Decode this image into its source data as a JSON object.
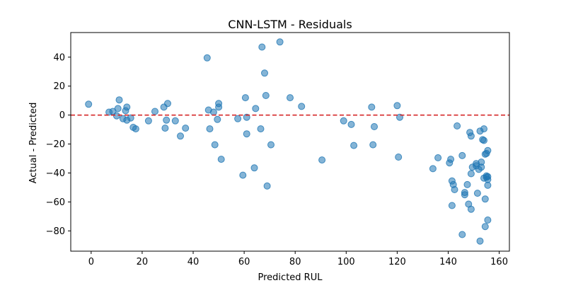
{
  "chart_data": {
    "type": "scatter",
    "title": "CNN-LSTM - Residuals",
    "xlabel": "Predicted RUL",
    "ylabel": "Actual - Predicted",
    "xlim": [
      -8,
      164
    ],
    "ylim": [
      -94,
      57
    ],
    "xticks": [
      0,
      20,
      40,
      60,
      80,
      100,
      120,
      140,
      160
    ],
    "yticks": [
      -80,
      -60,
      -40,
      -20,
      0,
      20,
      40
    ],
    "point_color": "#1f77b4",
    "point_opacity": 0.55,
    "reference_line": {
      "y": 0,
      "color": "#d62728",
      "style": "dashed"
    },
    "grid": false,
    "legend": "none",
    "points": [
      [
        -1,
        7.5
      ],
      [
        7,
        2
      ],
      [
        8.5,
        2.5
      ],
      [
        10,
        -0.5
      ],
      [
        10.5,
        4.5
      ],
      [
        11,
        10.5
      ],
      [
        12.5,
        -2.5
      ],
      [
        13.5,
        3
      ],
      [
        14,
        -3.5
      ],
      [
        14,
        5.5
      ],
      [
        15.5,
        -2
      ],
      [
        16.5,
        -8.5
      ],
      [
        17.5,
        -9.5
      ],
      [
        22.5,
        -4
      ],
      [
        25,
        2.5
      ],
      [
        28.5,
        5.5
      ],
      [
        29,
        -9
      ],
      [
        29.5,
        -3.5
      ],
      [
        30,
        8
      ],
      [
        33,
        -4
      ],
      [
        35,
        -14.5
      ],
      [
        37,
        -9
      ],
      [
        45.5,
        39.5
      ],
      [
        46,
        3.5
      ],
      [
        46.5,
        -9.5
      ],
      [
        48,
        2
      ],
      [
        48.5,
        -20.5
      ],
      [
        49.5,
        -3
      ],
      [
        50,
        5.5
      ],
      [
        50,
        8
      ],
      [
        51,
        -30.5
      ],
      [
        57.5,
        -2.5
      ],
      [
        59.5,
        -41.5
      ],
      [
        60.5,
        12
      ],
      [
        61,
        -13
      ],
      [
        61,
        -1.5
      ],
      [
        64,
        -36.5
      ],
      [
        64.5,
        4.5
      ],
      [
        66.5,
        -9.5
      ],
      [
        67,
        47
      ],
      [
        68,
        29
      ],
      [
        68.5,
        13.5
      ],
      [
        69,
        -49
      ],
      [
        70.5,
        -20.5
      ],
      [
        74,
        50.5
      ],
      [
        78,
        12
      ],
      [
        82.5,
        6
      ],
      [
        90.5,
        -31
      ],
      [
        99,
        -4
      ],
      [
        102,
        -6.5
      ],
      [
        103,
        -21
      ],
      [
        110,
        5.5
      ],
      [
        110.5,
        -20.5
      ],
      [
        111,
        -8
      ],
      [
        120,
        6.5
      ],
      [
        120.5,
        -29
      ],
      [
        121,
        -1.5
      ],
      [
        134,
        -37
      ],
      [
        136,
        -29.5
      ],
      [
        140.5,
        -33
      ],
      [
        141,
        -30.5
      ],
      [
        141.5,
        -45.5
      ],
      [
        141.5,
        -62.5
      ],
      [
        142,
        -48
      ],
      [
        142.5,
        -51.5
      ],
      [
        143.5,
        -7.5
      ],
      [
        145.5,
        -82.5
      ],
      [
        145.5,
        -28
      ],
      [
        146.5,
        -53.5
      ],
      [
        146.5,
        -55
      ],
      [
        147.5,
        -48
      ],
      [
        148,
        -61.5
      ],
      [
        148.5,
        -12
      ],
      [
        149,
        -14.5
      ],
      [
        149,
        -65
      ],
      [
        149,
        -40.5
      ],
      [
        149.5,
        -36
      ],
      [
        151,
        -35
      ],
      [
        151,
        -33.5
      ],
      [
        151.5,
        -54
      ],
      [
        152,
        -37.5
      ],
      [
        152.5,
        -11
      ],
      [
        152.5,
        -87
      ],
      [
        153,
        -32.5
      ],
      [
        153,
        -36
      ],
      [
        153.5,
        -17
      ],
      [
        154,
        -17.5
      ],
      [
        154,
        -9.5
      ],
      [
        154,
        -43.5
      ],
      [
        154.5,
        -77
      ],
      [
        154.5,
        -58
      ],
      [
        154.5,
        -27
      ],
      [
        155,
        -42
      ],
      [
        155,
        -26.5
      ],
      [
        155,
        -43
      ],
      [
        155.5,
        -44.5
      ],
      [
        155.5,
        -72.5
      ],
      [
        155.5,
        -24.5
      ],
      [
        155.5,
        -48.5
      ],
      [
        155.5,
        -42.5
      ]
    ]
  }
}
